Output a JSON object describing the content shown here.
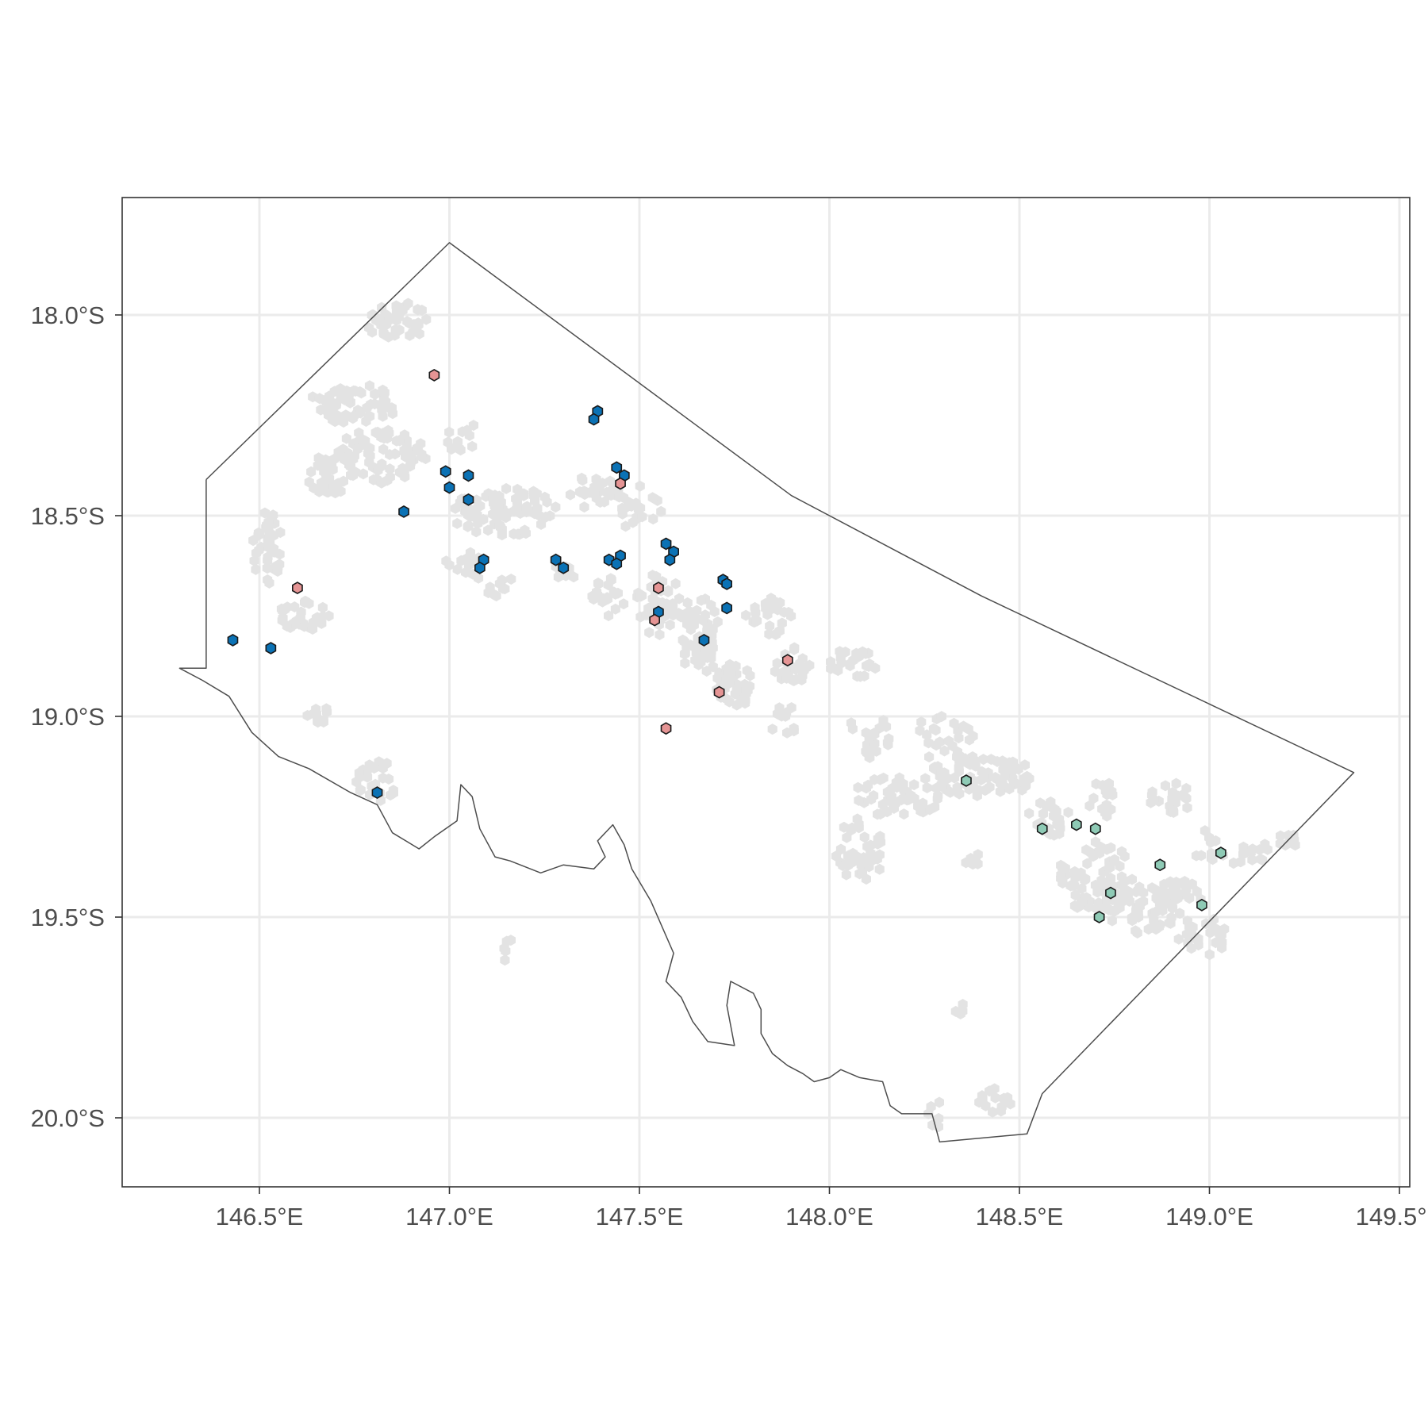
{
  "map": {
    "x_axis": {
      "ticks": [
        146.5,
        147.0,
        147.5,
        148.0,
        148.5,
        149.0,
        149.5
      ],
      "tick_labels": [
        "146.5°E",
        "147.0°E",
        "147.5°E",
        "148.0°E",
        "148.5°E",
        "149.0°E",
        "149.5°E"
      ],
      "range": [
        146.14,
        149.53
      ]
    },
    "y_axis": {
      "ticks": [
        -18.0,
        -18.5,
        -19.0,
        -19.5,
        -20.0
      ],
      "tick_labels": [
        "18.0°S",
        "18.5°S",
        "19.0°S",
        "19.5°S",
        "20.0°S"
      ],
      "range": [
        -20.17,
        -17.71
      ]
    },
    "grid": true,
    "colors": {
      "background": "#ffffff",
      "grid": "#ebebeb",
      "outline": "#4d4d4d",
      "habitat": "#e3e3e3",
      "group_blue": "#0b72b5",
      "group_pink": "#e59494",
      "group_green": "#8ecab5",
      "marker_stroke": "#1a1a1a"
    },
    "region_outline": [
      [
        146.36,
        -18.41
      ],
      [
        147.0,
        -17.82
      ],
      [
        147.9,
        -18.45
      ],
      [
        148.4,
        -18.7
      ],
      [
        149.38,
        -19.14
      ],
      [
        148.56,
        -19.94
      ],
      [
        148.52,
        -20.04
      ],
      [
        148.29,
        -20.06
      ],
      [
        148.27,
        -19.99
      ],
      [
        148.19,
        -19.99
      ],
      [
        148.16,
        -19.97
      ],
      [
        148.14,
        -19.91
      ],
      [
        148.08,
        -19.9
      ],
      [
        148.03,
        -19.88
      ],
      [
        148.0,
        -19.9
      ],
      [
        147.96,
        -19.91
      ],
      [
        147.93,
        -19.89
      ],
      [
        147.89,
        -19.87
      ],
      [
        147.85,
        -19.84
      ],
      [
        147.82,
        -19.79
      ],
      [
        147.82,
        -19.73
      ],
      [
        147.8,
        -19.69
      ],
      [
        147.74,
        -19.66
      ],
      [
        147.73,
        -19.72
      ],
      [
        147.75,
        -19.82
      ],
      [
        147.68,
        -19.81
      ],
      [
        147.64,
        -19.76
      ],
      [
        147.61,
        -19.7
      ],
      [
        147.57,
        -19.66
      ],
      [
        147.59,
        -19.59
      ],
      [
        147.53,
        -19.46
      ],
      [
        147.48,
        -19.38
      ],
      [
        147.46,
        -19.32
      ],
      [
        147.43,
        -19.27
      ],
      [
        147.39,
        -19.31
      ],
      [
        147.41,
        -19.35
      ],
      [
        147.38,
        -19.38
      ],
      [
        147.3,
        -19.37
      ],
      [
        147.24,
        -19.39
      ],
      [
        147.16,
        -19.36
      ],
      [
        147.12,
        -19.35
      ],
      [
        147.08,
        -19.28
      ],
      [
        147.06,
        -19.2
      ],
      [
        147.03,
        -19.17
      ],
      [
        147.02,
        -19.26
      ],
      [
        146.96,
        -19.3
      ],
      [
        146.92,
        -19.33
      ],
      [
        146.85,
        -19.29
      ],
      [
        146.81,
        -19.22
      ],
      [
        146.74,
        -19.19
      ],
      [
        146.63,
        -19.13
      ],
      [
        146.55,
        -19.1
      ],
      [
        146.48,
        -19.04
      ],
      [
        146.42,
        -18.95
      ],
      [
        146.35,
        -18.91
      ],
      [
        146.29,
        -18.88
      ],
      [
        146.36,
        -18.88
      ],
      [
        146.36,
        -18.41
      ]
    ],
    "habitat_clusters": [
      [
        146.86,
        -18.02,
        0.08,
        0.06,
        40
      ],
      [
        146.75,
        -18.22,
        0.12,
        0.05,
        60
      ],
      [
        146.82,
        -18.35,
        0.12,
        0.07,
        80
      ],
      [
        146.68,
        -18.4,
        0.06,
        0.05,
        25
      ],
      [
        146.52,
        -18.58,
        0.04,
        0.09,
        40
      ],
      [
        146.62,
        -18.75,
        0.07,
        0.04,
        30
      ],
      [
        146.66,
        -19.0,
        0.04,
        0.04,
        10
      ],
      [
        146.81,
        -19.16,
        0.06,
        0.05,
        25
      ],
      [
        147.03,
        -18.3,
        0.04,
        0.05,
        12
      ],
      [
        147.15,
        -18.49,
        0.15,
        0.06,
        80
      ],
      [
        147.04,
        -18.62,
        0.05,
        0.03,
        12
      ],
      [
        147.12,
        -18.67,
        0.05,
        0.03,
        10
      ],
      [
        147.3,
        -18.64,
        0.03,
        0.03,
        10
      ],
      [
        147.38,
        -18.45,
        0.08,
        0.05,
        25
      ],
      [
        147.42,
        -18.7,
        0.05,
        0.05,
        20
      ],
      [
        147.5,
        -18.48,
        0.06,
        0.06,
        20
      ],
      [
        147.55,
        -18.72,
        0.06,
        0.08,
        45
      ],
      [
        147.65,
        -18.78,
        0.06,
        0.08,
        40
      ],
      [
        147.75,
        -18.92,
        0.05,
        0.06,
        45
      ],
      [
        147.66,
        -18.85,
        0.05,
        0.05,
        20
      ],
      [
        147.84,
        -18.75,
        0.06,
        0.05,
        25
      ],
      [
        147.9,
        -18.87,
        0.05,
        0.05,
        25
      ],
      [
        147.88,
        -19.01,
        0.04,
        0.04,
        10
      ],
      [
        148.07,
        -18.87,
        0.07,
        0.04,
        25
      ],
      [
        148.1,
        -19.05,
        0.06,
        0.06,
        20
      ],
      [
        148.3,
        -19.05,
        0.08,
        0.06,
        25
      ],
      [
        148.18,
        -19.2,
        0.12,
        0.05,
        50
      ],
      [
        148.4,
        -19.15,
        0.15,
        0.05,
        80
      ],
      [
        148.08,
        -19.33,
        0.07,
        0.08,
        40
      ],
      [
        148.37,
        -19.36,
        0.03,
        0.03,
        8
      ],
      [
        148.58,
        -19.25,
        0.06,
        0.05,
        25
      ],
      [
        148.7,
        -19.4,
        0.1,
        0.09,
        80
      ],
      [
        148.82,
        -19.48,
        0.1,
        0.06,
        50
      ],
      [
        148.92,
        -19.45,
        0.06,
        0.05,
        25
      ],
      [
        148.72,
        -19.2,
        0.05,
        0.05,
        15
      ],
      [
        148.9,
        -19.2,
        0.06,
        0.04,
        20
      ],
      [
        149.0,
        -19.32,
        0.05,
        0.04,
        12
      ],
      [
        149.1,
        -19.35,
        0.05,
        0.04,
        12
      ],
      [
        148.98,
        -19.55,
        0.07,
        0.05,
        25
      ],
      [
        149.18,
        -19.31,
        0.05,
        0.03,
        10
      ],
      [
        148.35,
        -19.73,
        0.02,
        0.02,
        4
      ],
      [
        148.43,
        -19.96,
        0.05,
        0.04,
        15
      ],
      [
        148.28,
        -19.99,
        0.02,
        0.04,
        6
      ],
      [
        147.15,
        -19.58,
        0.03,
        0.03,
        5
      ]
    ],
    "groups": {
      "blue": [
        [
          146.43,
          -18.81
        ],
        [
          146.53,
          -18.83
        ],
        [
          146.81,
          -19.19
        ],
        [
          146.88,
          -18.49
        ],
        [
          146.99,
          -18.39
        ],
        [
          147.0,
          -18.43
        ],
        [
          147.05,
          -18.4
        ],
        [
          147.05,
          -18.46
        ],
        [
          147.09,
          -18.61
        ],
        [
          147.08,
          -18.63
        ],
        [
          147.28,
          -18.61
        ],
        [
          147.3,
          -18.63
        ],
        [
          147.39,
          -18.24
        ],
        [
          147.38,
          -18.26
        ],
        [
          147.44,
          -18.38
        ],
        [
          147.46,
          -18.4
        ],
        [
          147.42,
          -18.61
        ],
        [
          147.45,
          -18.6
        ],
        [
          147.44,
          -18.62
        ],
        [
          147.57,
          -18.57
        ],
        [
          147.59,
          -18.59
        ],
        [
          147.58,
          -18.61
        ],
        [
          147.55,
          -18.74
        ],
        [
          147.72,
          -18.66
        ],
        [
          147.73,
          -18.67
        ],
        [
          147.73,
          -18.73
        ],
        [
          147.67,
          -18.81
        ]
      ],
      "pink": [
        [
          146.96,
          -18.15
        ],
        [
          147.45,
          -18.42
        ],
        [
          146.6,
          -18.68
        ],
        [
          147.55,
          -18.68
        ],
        [
          147.54,
          -18.76
        ],
        [
          147.89,
          -18.86
        ],
        [
          147.71,
          -18.94
        ],
        [
          147.57,
          -19.03
        ]
      ],
      "green": [
        [
          148.36,
          -19.16
        ],
        [
          148.56,
          -19.28
        ],
        [
          148.65,
          -19.27
        ],
        [
          148.7,
          -19.28
        ],
        [
          149.03,
          -19.34
        ],
        [
          148.87,
          -19.37
        ],
        [
          148.74,
          -19.44
        ],
        [
          148.71,
          -19.5
        ],
        [
          148.98,
          -19.47
        ]
      ]
    }
  }
}
